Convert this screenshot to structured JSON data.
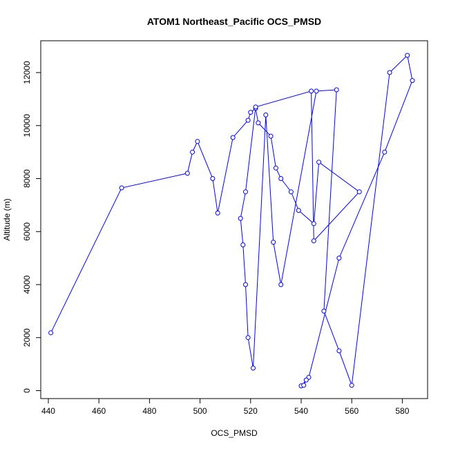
{
  "chart_data": {
    "type": "line",
    "title": "ATOM1 Northeast_Pacific OCS_PMSD",
    "xlabel": "OCS_PMSD",
    "ylabel": "Altitude (m)",
    "xlim": [
      437,
      590
    ],
    "ylim": [
      -300,
      13200
    ],
    "xticks": [
      440,
      460,
      480,
      500,
      520,
      540,
      560,
      580
    ],
    "yticks": [
      0,
      2000,
      4000,
      6000,
      8000,
      10000,
      12000
    ],
    "line_color": "#0000ff",
    "grid": false,
    "legend": "none",
    "series": [
      {
        "x": [
          441,
          469,
          495,
          497,
          499,
          505,
          507,
          513,
          519,
          520,
          522,
          523,
          528,
          530,
          532,
          536,
          539,
          545,
          547,
          563,
          545,
          544,
          522,
          518,
          516,
          517,
          518,
          519,
          521,
          526,
          529,
          532,
          546,
          554,
          549,
          555,
          560,
          575,
          582,
          584,
          573,
          555,
          543,
          540,
          541,
          542
        ],
        "y": [
          2180,
          7650,
          8200,
          9000,
          9400,
          8000,
          6700,
          9550,
          10200,
          10500,
          10650,
          10100,
          9600,
          8400,
          8000,
          7500,
          6800,
          6300,
          8620,
          7500,
          5650,
          11300,
          10700,
          7500,
          6500,
          5500,
          4000,
          2000,
          850,
          10400,
          5600,
          4000,
          11300,
          11350,
          3000,
          1500,
          200,
          12000,
          12650,
          11700,
          9000,
          5000,
          500,
          180,
          200,
          400
        ]
      }
    ]
  }
}
